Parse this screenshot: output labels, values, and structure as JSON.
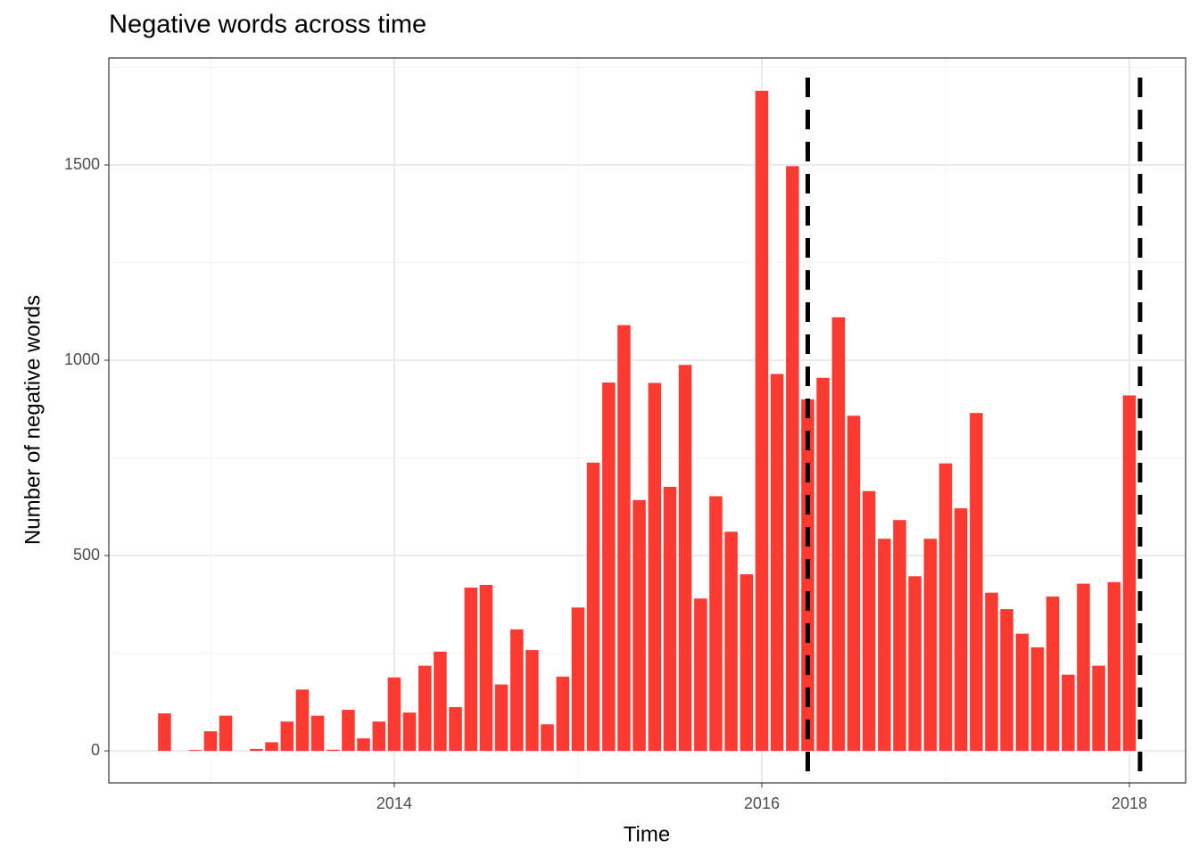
{
  "chart_data": {
    "type": "bar",
    "title": "Negative words across time",
    "x_label": "Time",
    "y_label": "Number of negative words",
    "color": "#fb3b32",
    "grid": true,
    "xlim": [
      2012.447,
      2018.306
    ],
    "ylim": [
      -82,
      1774
    ],
    "xticks": [
      2014,
      2016,
      2018
    ],
    "yticks": [
      0,
      500,
      1000,
      1500
    ],
    "vlines": [
      2016.25,
      2018.058
    ],
    "x": [
      2012.75,
      2012.833,
      2012.917,
      2013.0,
      2013.083,
      2013.167,
      2013.25,
      2013.333,
      2013.417,
      2013.5,
      2013.583,
      2013.667,
      2013.75,
      2013.833,
      2013.917,
      2014.0,
      2014.083,
      2014.167,
      2014.25,
      2014.333,
      2014.417,
      2014.5,
      2014.583,
      2014.667,
      2014.75,
      2014.833,
      2014.917,
      2015.0,
      2015.083,
      2015.167,
      2015.25,
      2015.333,
      2015.417,
      2015.5,
      2015.583,
      2015.667,
      2015.75,
      2015.833,
      2015.917,
      2016.0,
      2016.083,
      2016.167,
      2016.25,
      2016.333,
      2016.417,
      2016.5,
      2016.583,
      2016.667,
      2016.75,
      2016.833,
      2016.917,
      2017.0,
      2017.083,
      2017.167,
      2017.25,
      2017.333,
      2017.417,
      2017.5,
      2017.583,
      2017.667,
      2017.75,
      2017.833,
      2017.917,
      2018.0
    ],
    "values": [
      96,
      0,
      2,
      50,
      90,
      0,
      5,
      22,
      75,
      157,
      90,
      3,
      105,
      32,
      75,
      188,
      98,
      218,
      254,
      112,
      418,
      425,
      170,
      311,
      258,
      68,
      190,
      367,
      738,
      943,
      1090,
      642,
      942,
      676,
      988,
      390,
      652,
      561,
      452,
      1690,
      965,
      1497,
      900,
      955,
      1110,
      858,
      665,
      543,
      591,
      447,
      543,
      736,
      621,
      865,
      405,
      363,
      300,
      265,
      395,
      195,
      428,
      218,
      432,
      910
    ]
  }
}
